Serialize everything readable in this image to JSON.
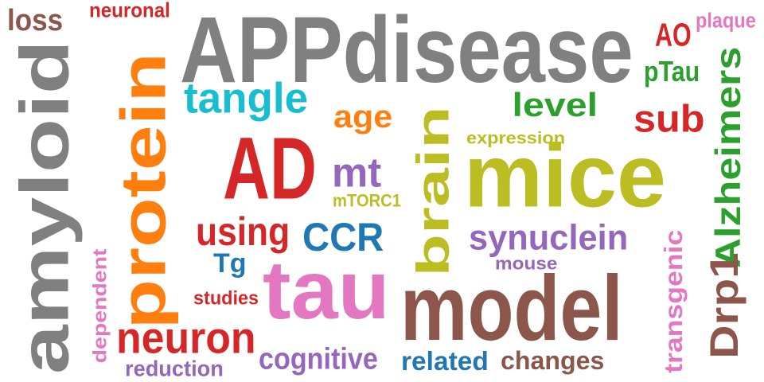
{
  "words": [
    {
      "text": "APPdisease",
      "color": "#808080",
      "rotated": false
    },
    {
      "text": "amyloid",
      "color": "#808080",
      "rotated": true
    },
    {
      "text": "protein",
      "color": "#ff7f0e",
      "rotated": true
    },
    {
      "text": "tau",
      "color": "#e377c2",
      "rotated": false
    },
    {
      "text": "model",
      "color": "#8c564b",
      "rotated": false
    },
    {
      "text": "mice",
      "color": "#bcbd22",
      "rotated": false
    },
    {
      "text": "brain",
      "color": "#bcbd22",
      "rotated": true
    },
    {
      "text": "AD",
      "color": "#d62728",
      "rotated": false
    },
    {
      "text": "Alzheimers",
      "color": "#2ca02c",
      "rotated": true
    },
    {
      "text": "Drp1",
      "color": "#8c564b",
      "rotated": true
    },
    {
      "text": "tangle",
      "color": "#17becf",
      "rotated": false
    },
    {
      "text": "neuron",
      "color": "#d62728",
      "rotated": false
    },
    {
      "text": "loss",
      "color": "#8c564b",
      "rotated": false
    },
    {
      "text": "neuronal",
      "color": "#d62728",
      "rotated": false
    },
    {
      "text": "AO",
      "color": "#d62728",
      "rotated": false
    },
    {
      "text": "plaque",
      "color": "#e377c2",
      "rotated": false
    },
    {
      "text": "pTau",
      "color": "#2ca02c",
      "rotated": false
    },
    {
      "text": "level",
      "color": "#2ca02c",
      "rotated": false
    },
    {
      "text": "sub",
      "color": "#d62728",
      "rotated": false
    },
    {
      "text": "age",
      "color": "#ff7f0e",
      "rotated": false
    },
    {
      "text": "expression",
      "color": "#bcbd22",
      "rotated": false
    },
    {
      "text": "mt",
      "color": "#9467bd",
      "rotated": false
    },
    {
      "text": "mTORC1",
      "color": "#bcbd22",
      "rotated": false
    },
    {
      "text": "using",
      "color": "#d62728",
      "rotated": false
    },
    {
      "text": "CCR",
      "color": "#1f77b4",
      "rotated": false
    },
    {
      "text": "synuclein",
      "color": "#9467bd",
      "rotated": false
    },
    {
      "text": "mouse",
      "color": "#9467bd",
      "rotated": false
    },
    {
      "text": "Tg",
      "color": "#1f77b4",
      "rotated": false
    },
    {
      "text": "studies",
      "color": "#d62728",
      "rotated": false
    },
    {
      "text": "transgenic",
      "color": "#e377c2",
      "rotated": true
    },
    {
      "text": "dependent",
      "color": "#e377c2",
      "rotated": true
    },
    {
      "text": "cognitive",
      "color": "#9467bd",
      "rotated": false
    },
    {
      "text": "reduction",
      "color": "#9467bd",
      "rotated": false
    },
    {
      "text": "related",
      "color": "#1f77b4",
      "rotated": false
    },
    {
      "text": "changes",
      "color": "#8c564b",
      "rotated": false
    }
  ]
}
